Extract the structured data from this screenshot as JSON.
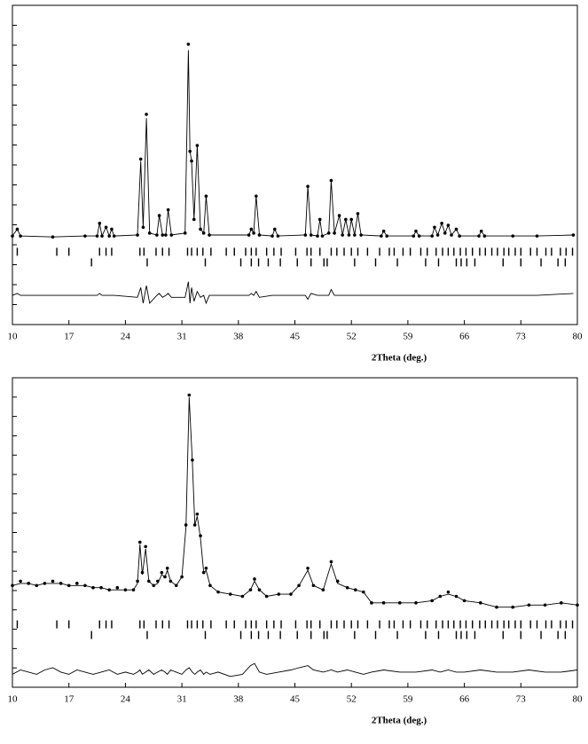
{
  "chart_data": [
    {
      "type": "line",
      "xlabel": "2Theta (deg.)",
      "xlim": [
        10,
        80
      ],
      "ylim": [
        -44,
        120
      ],
      "xticks": [
        10,
        17,
        24,
        31,
        38,
        45,
        52,
        59,
        66,
        73,
        80
      ],
      "x": [
        10,
        10.6,
        11,
        15,
        19,
        20.5,
        20.8,
        21.1,
        21.6,
        22.0,
        22.3,
        22.6,
        25.5,
        25.9,
        26.2,
        26.6,
        27.0,
        27.9,
        28.2,
        28.6,
        29.0,
        29.3,
        29.7,
        31.4,
        31.8,
        32.0,
        32.2,
        32.5,
        32.9,
        33.3,
        33.7,
        34.0,
        34.4,
        39.3,
        39.6,
        39.9,
        40.2,
        40.6,
        42.2,
        42.5,
        42.9,
        46.3,
        46.6,
        47.0,
        47.8,
        48.1,
        48.4,
        49.2,
        49.5,
        49.9,
        50.5,
        50.9,
        51.3,
        51.7,
        52.0,
        52.4,
        52.8,
        53.2,
        55.7,
        56.0,
        56.4,
        59.7,
        60.0,
        60.4,
        62.0,
        62.3,
        62.7,
        63.2,
        63.6,
        64.0,
        64.4,
        65.0,
        65.4,
        67.8,
        68.1,
        68.5,
        72,
        75,
        79.5
      ],
      "series": [
        {
          "style": "points",
          "color": "#000000",
          "values": [
            1.5,
            5,
            1.5,
            1,
            1.5,
            1.5,
            8,
            1.5,
            6,
            1.5,
            5,
            1.5,
            2,
            41,
            6,
            64,
            3,
            2,
            12,
            2,
            2,
            15,
            2,
            3,
            100,
            45,
            40,
            10,
            48,
            5,
            3,
            22,
            2,
            2,
            5,
            3,
            22,
            2,
            1.5,
            5,
            1.5,
            2,
            27,
            2,
            1.5,
            10,
            1.5,
            3,
            30,
            3,
            12,
            2,
            10,
            2,
            10,
            2,
            13,
            2,
            1.5,
            4,
            1.5,
            1.5,
            4,
            1.5,
            1.5,
            6,
            2,
            8,
            3,
            7,
            2,
            5,
            1.5,
            1.5,
            4,
            1.5,
            1.5,
            1.5,
            2
          ]
        },
        {
          "style": "line",
          "color": "#000000",
          "values": [
            1.5,
            5,
            1.5,
            1,
            1.5,
            1.5,
            8,
            1.5,
            6,
            1.5,
            5,
            1.5,
            2,
            40,
            6,
            62,
            3,
            2,
            12,
            2,
            2,
            15,
            2,
            3,
            97,
            45,
            40,
            10,
            48,
            5,
            3,
            22,
            2,
            2,
            5,
            3,
            22,
            2,
            1.5,
            5,
            1.5,
            2,
            27,
            2,
            1.5,
            10,
            1.5,
            3,
            30,
            3,
            12,
            2,
            10,
            2,
            10,
            2,
            13,
            2,
            1.5,
            4,
            1.5,
            1.5,
            4,
            1.5,
            1.5,
            6,
            2,
            8,
            3,
            7,
            2,
            5,
            1.5,
            1.5,
            4,
            1.5,
            1.5,
            1.5,
            2
          ]
        },
        {
          "style": "line",
          "color": "#000000",
          "values": [
            -29,
            -28,
            -29,
            -29,
            -29,
            -29,
            -28,
            -29,
            -29,
            -29,
            -29,
            -29,
            -30,
            -25,
            -33,
            -24,
            -33,
            -29,
            -28,
            -30,
            -29,
            -28,
            -30,
            -30,
            -22,
            -33,
            -25,
            -32,
            -27,
            -30,
            -29,
            -33,
            -29,
            -29,
            -28,
            -29,
            -27,
            -30,
            -29,
            -29,
            -29,
            -29,
            -31,
            -28,
            -29,
            -29,
            -29,
            -29,
            -26,
            -29,
            -29,
            -29,
            -29,
            -29,
            -29,
            -29,
            -29,
            -29,
            -29,
            -29,
            -29,
            -29,
            -29,
            -29,
            -29,
            -29,
            -29,
            -29,
            -29,
            -29,
            -29,
            -29,
            -29,
            -29,
            -29,
            -29,
            -29,
            -29,
            -28
          ]
        }
      ],
      "reflections": [
        [
          10.6,
          15.5,
          17.0,
          20.8,
          21.6,
          22.3,
          25.8,
          26.3,
          27.8,
          28.6,
          29.4,
          31.7,
          32.2,
          32.9,
          33.6,
          34.6,
          36.5,
          37.5,
          38.9,
          39.6,
          40.2,
          41.5,
          42.4,
          43.3,
          45.1,
          46.5,
          47.0,
          48.1,
          49.5,
          50.2,
          51.1,
          52.0,
          52.8,
          54.0,
          55.5,
          56.7,
          57.3,
          58.4,
          59.3,
          60.6,
          61.4,
          62.5,
          63.3,
          64.0,
          64.7,
          65.5,
          66.2,
          67.0,
          67.9,
          68.6,
          69.4,
          70.1,
          70.9,
          71.5,
          72.3,
          73.0,
          74.2,
          75.0,
          76.1,
          76.8,
          77.9,
          78.6,
          79.4
        ],
        [
          19.8,
          26.7,
          33.9,
          38.3,
          39.6,
          40.5,
          41.7,
          43.2,
          45.3,
          47.0,
          48.6,
          49.0,
          52.4,
          55.0,
          57.7,
          61.2,
          62.8,
          65.0,
          65.6,
          66.3,
          67.3,
          70.8,
          73.0,
          75.5,
          77.6,
          78.5
        ]
      ]
    },
    {
      "type": "line",
      "xlabel": "2Theta (deg.)",
      "xlim": [
        10,
        80
      ],
      "ylim": [
        -35,
        108
      ],
      "xticks": [
        10,
        17,
        24,
        31,
        38,
        45,
        52,
        59,
        66,
        73,
        80
      ],
      "x": [
        10,
        11,
        12,
        13,
        14,
        15,
        16,
        17,
        18,
        19,
        20,
        21,
        22,
        23,
        24,
        25,
        25.5,
        25.8,
        26.1,
        26.5,
        26.9,
        27.5,
        28.0,
        28.5,
        28.9,
        29.2,
        29.6,
        30.3,
        31.0,
        31.5,
        31.9,
        32.3,
        32.6,
        32.9,
        33.3,
        33.7,
        34.0,
        34.5,
        35.5,
        37,
        38.5,
        39.5,
        40.0,
        40.6,
        41.5,
        43,
        44.5,
        45.5,
        46.6,
        47.3,
        48.5,
        49.5,
        50.3,
        51.5,
        52.5,
        53.5,
        54.5,
        56,
        58,
        60,
        62,
        63,
        64,
        65,
        66,
        68,
        70,
        72,
        74,
        76,
        78,
        80
      ],
      "series": [
        {
          "style": "points",
          "color": "#000000",
          "values": [
            12,
            14,
            13,
            12,
            13,
            14,
            13,
            12,
            13,
            12,
            11,
            11,
            10,
            11,
            10,
            10,
            14,
            32,
            18,
            30,
            14,
            12,
            14,
            18,
            16,
            20,
            14,
            12,
            16,
            40,
            100,
            70,
            40,
            45,
            35,
            18,
            20,
            12,
            9,
            8,
            7,
            10,
            15,
            10,
            7,
            8,
            8,
            12,
            20,
            12,
            10,
            23,
            14,
            11,
            10,
            9,
            4,
            4,
            4,
            4,
            5,
            7,
            9,
            7,
            5,
            4,
            2,
            2,
            3,
            3,
            4,
            3
          ]
        },
        {
          "style": "line",
          "color": "#000000",
          "values": [
            12,
            13,
            13,
            12,
            13,
            13,
            13,
            12,
            12,
            12,
            11,
            11,
            10,
            10,
            10,
            10,
            13,
            31,
            17,
            29,
            14,
            12,
            13,
            17,
            16,
            19,
            14,
            12,
            16,
            39,
            99,
            69,
            40,
            44,
            34,
            18,
            19,
            12,
            9,
            8,
            7,
            10,
            14,
            10,
            7,
            8,
            8,
            12,
            19,
            12,
            10,
            22,
            13,
            11,
            10,
            9,
            4,
            4,
            4,
            4,
            5,
            7,
            8,
            7,
            5,
            4,
            2,
            2,
            3,
            3,
            4,
            3
          ]
        },
        {
          "style": "line",
          "color": "#000000",
          "values": [
            -29,
            -27,
            -28,
            -29,
            -27,
            -26,
            -28,
            -29,
            -27,
            -28,
            -29,
            -28,
            -27,
            -29,
            -28,
            -29,
            -28,
            -27,
            -29,
            -28,
            -27,
            -29,
            -28,
            -27,
            -28,
            -29,
            -27,
            -28,
            -29,
            -27,
            -26,
            -28,
            -29,
            -28,
            -27,
            -29,
            -28,
            -29,
            -28,
            -30,
            -29,
            -25,
            -24,
            -28,
            -29,
            -28,
            -27,
            -26,
            -25,
            -27,
            -28,
            -27,
            -28,
            -27,
            -28,
            -29,
            -28,
            -27,
            -28,
            -28,
            -27,
            -28,
            -27,
            -28,
            -28,
            -27,
            -28,
            -28,
            -27,
            -28,
            -28,
            -27
          ]
        }
      ],
      "reflections": [
        [
          10.6,
          15.5,
          17.0,
          20.8,
          21.6,
          22.3,
          25.8,
          26.3,
          27.8,
          28.6,
          29.4,
          31.7,
          32.2,
          32.9,
          33.6,
          34.6,
          36.5,
          37.5,
          38.9,
          39.6,
          40.2,
          41.5,
          42.4,
          43.3,
          45.1,
          46.5,
          47.0,
          48.1,
          49.5,
          50.2,
          51.1,
          52.0,
          52.8,
          54.0,
          55.5,
          56.7,
          57.3,
          58.4,
          59.3,
          60.6,
          61.4,
          62.5,
          63.3,
          64.0,
          64.7,
          65.5,
          66.2,
          67.0,
          67.9,
          68.6,
          69.4,
          70.1,
          70.9,
          71.5,
          72.3,
          73.0,
          74.2,
          75.0,
          76.1,
          76.8,
          77.9,
          78.6,
          79.4
        ],
        [
          19.8,
          26.7,
          33.9,
          38.3,
          39.6,
          40.5,
          41.7,
          43.2,
          45.3,
          47.0,
          48.6,
          49.0,
          52.4,
          55.0,
          57.7,
          61.2,
          62.8,
          65.0,
          65.6,
          66.3,
          67.3,
          70.8,
          73.0,
          75.5,
          77.6,
          78.5
        ]
      ]
    }
  ]
}
